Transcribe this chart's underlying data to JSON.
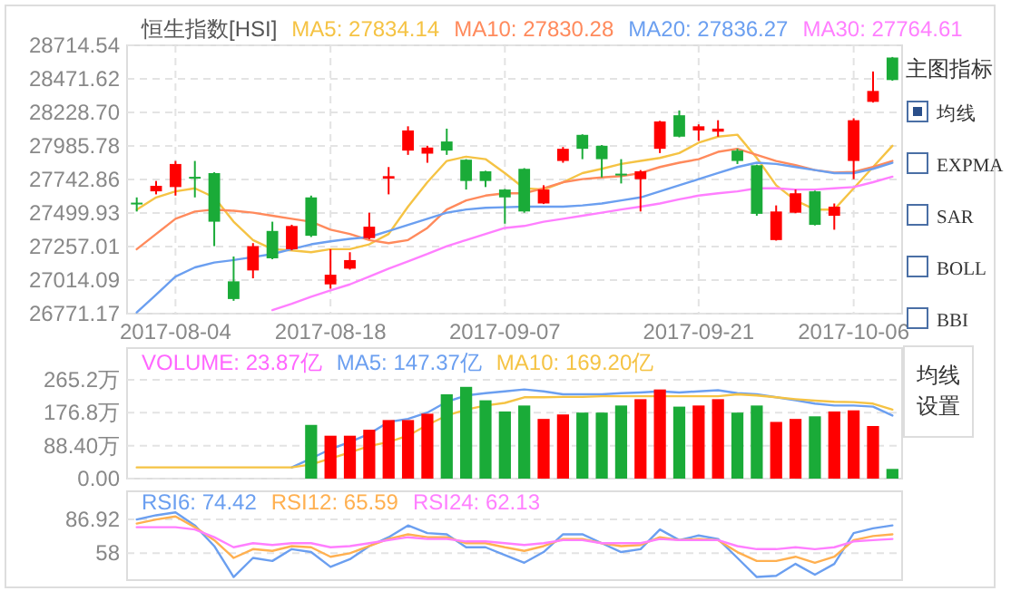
{
  "chart_data": [
    {
      "type": "candlestick",
      "title": "恒生指数[HSI]",
      "categories": [
        null,
        null,
        "2017-08-04",
        null,
        null,
        null,
        null,
        null,
        null,
        null,
        "2017-08-18",
        null,
        null,
        null,
        null,
        null,
        null,
        null,
        null,
        "2017-09-07",
        null,
        null,
        null,
        null,
        null,
        null,
        null,
        null,
        null,
        "2017-09-21",
        null,
        null,
        null,
        null,
        null,
        null,
        null,
        "2017-10-06",
        null,
        null
      ],
      "ohlc": [
        [
          27575,
          27613,
          27511,
          27565
        ],
        [
          27657,
          27732,
          27635,
          27697
        ],
        [
          27688,
          27877,
          27626,
          27855
        ],
        [
          27762,
          27877,
          27613,
          27754
        ],
        [
          27789,
          27795,
          27260,
          27437
        ],
        [
          27005,
          27185,
          26864,
          26877
        ],
        [
          27084,
          27282,
          27027,
          27260
        ],
        [
          27370,
          27437,
          27165,
          27172
        ],
        [
          27238,
          27415,
          27230,
          27406
        ],
        [
          27613,
          27626,
          27326,
          27335
        ],
        [
          26983,
          27238,
          26952,
          27053
        ],
        [
          27097,
          27216,
          27090,
          27159
        ],
        [
          27318,
          27502,
          27310,
          27401
        ],
        [
          27749,
          27833,
          27635,
          27767
        ],
        [
          27952,
          28128,
          27921,
          28098
        ],
        [
          27930,
          27987,
          27864,
          27974
        ],
        [
          28018,
          28111,
          27921,
          27952
        ],
        [
          27886,
          27890,
          27670,
          27732
        ],
        [
          27802,
          27806,
          27688,
          27732
        ],
        [
          27670,
          27674,
          27423,
          27613
        ],
        [
          27820,
          27825,
          27502,
          27511
        ],
        [
          27569,
          27701,
          27565,
          27670
        ],
        [
          27877,
          27978,
          27864,
          27965
        ],
        [
          28066,
          28070,
          27890,
          27965
        ],
        [
          27987,
          27992,
          27758,
          27890
        ],
        [
          27785,
          27890,
          27714,
          27775
        ],
        [
          27745,
          27811,
          27511,
          27802
        ],
        [
          27965,
          28168,
          27934,
          28163
        ],
        [
          28208,
          28243,
          28048,
          28053
        ],
        [
          28098,
          28142,
          28023,
          28128
        ],
        [
          28089,
          28172,
          28053,
          28111
        ],
        [
          27952,
          27965,
          27855,
          27877
        ],
        [
          27846,
          27850,
          27480,
          27494
        ],
        [
          27304,
          27555,
          27300,
          27511
        ],
        [
          27502,
          27670,
          27498,
          27643
        ],
        [
          27657,
          27662,
          27410,
          27414
        ],
        [
          27480,
          27569,
          27379,
          27546
        ],
        [
          27877,
          28186,
          27745,
          28172
        ],
        [
          28305,
          28525,
          28300,
          28384
        ],
        [
          28626,
          28630,
          28458,
          28463
        ]
      ],
      "series": [
        {
          "name": "MA5: 27834.14",
          "type": "line",
          "color": "#f5c344",
          "values": [
            27525,
            27613,
            27657,
            27679,
            27613,
            27437,
            27304,
            27238,
            27229,
            27216,
            27238,
            27238,
            27273,
            27348,
            27546,
            27723,
            27877,
            27908,
            27890,
            27789,
            27679,
            27670,
            27723,
            27789,
            27820,
            27855,
            27877,
            27899,
            27934,
            28009,
            28053,
            28067,
            27899,
            27701,
            27591,
            27525,
            27525,
            27679,
            27833,
            27987
          ]
        },
        {
          "name": "MA10: 27830.28",
          "type": "line",
          "color": "#ff8a5c",
          "values": [
            27238,
            27348,
            27458,
            27511,
            27525,
            27516,
            27502,
            27480,
            27458,
            27437,
            27379,
            27348,
            27304,
            27282,
            27304,
            27392,
            27525,
            27591,
            27626,
            27643,
            27643,
            27679,
            27723,
            27745,
            27758,
            27767,
            27789,
            27833,
            27864,
            27890,
            27943,
            27965,
            27921,
            27877,
            27846,
            27811,
            27793,
            27797,
            27833,
            27877
          ]
        },
        {
          "name": "MA20: 27836.27",
          "type": "line",
          "color": "#6b9ff0",
          "values": [
            26780,
            26908,
            27040,
            27106,
            27141,
            27159,
            27181,
            27203,
            27238,
            27273,
            27295,
            27313,
            27326,
            27370,
            27414,
            27458,
            27502,
            27525,
            27538,
            27542,
            27546,
            27546,
            27546,
            27555,
            27569,
            27591,
            27613,
            27657,
            27701,
            27745,
            27789,
            27833,
            27864,
            27855,
            27833,
            27811,
            27789,
            27789,
            27820,
            27864
          ]
        },
        {
          "name": "MA30: 27764.61",
          "type": "line",
          "color": "#ff7fff",
          "values": [
            null,
            null,
            null,
            null,
            null,
            null,
            null,
            26797,
            26842,
            26894,
            26939,
            26983,
            27040,
            27097,
            27150,
            27203,
            27260,
            27304,
            27348,
            27392,
            27406,
            27437,
            27458,
            27480,
            27502,
            27525,
            27546,
            27569,
            27599,
            27626,
            27643,
            27657,
            27679,
            27679,
            27670,
            27670,
            27679,
            27688,
            27723,
            27763
          ]
        }
      ],
      "ylim": [
        26771.17,
        28714.54
      ],
      "yticks": [
        28714.54,
        28471.62,
        {
          "value": 28228.7,
          "label": "28228.70"
        },
        27985.78,
        27742.86,
        27499.93,
        27257.01,
        27014.09,
        26771.17
      ],
      "grid": true
    },
    {
      "type": "bar",
      "categories": [
        null,
        null,
        null,
        null,
        null,
        null,
        null,
        null,
        null,
        null,
        null,
        null,
        null,
        null,
        null,
        null,
        null,
        null,
        null,
        null,
        null,
        null,
        null,
        null,
        null,
        null,
        null,
        null,
        null,
        null,
        null,
        null,
        null,
        null,
        null,
        null,
        null,
        null,
        null,
        null
      ],
      "series": [
        {
          "name": "VOLUME: 23.87亿",
          "color": "#ff66ff",
          "colors": [
            "#1aab38",
            "#ff0000",
            "#ff0000",
            "#1aab38",
            "#1aab38",
            "#1aab38",
            "#ff0000",
            "#1aab38",
            "#ff0000",
            "#1aab38",
            "#ff0000",
            "#ff0000",
            "#ff0000",
            "#ff0000",
            "#ff0000",
            "#ff0000",
            "#1aab38",
            "#1aab38",
            "#1aab38",
            "#1aab38",
            "#1aab38",
            "#ff0000",
            "#ff0000",
            "#1aab38",
            "#1aab38",
            "#1aab38",
            "#ff0000",
            "#ff0000",
            "#1aab38",
            "#ff0000",
            "#ff0000",
            "#1aab38",
            "#1aab38",
            "#ff0000",
            "#ff0000",
            "#1aab38",
            "#ff0000",
            "#ff0000",
            "#ff0000",
            "#1aab38"
          ],
          "values": [
            0,
            0,
            0,
            0,
            0,
            0,
            0,
            0,
            0,
            144,
            115,
            115,
            131,
            157,
            157,
            174,
            226,
            246,
            210,
            180,
            196,
            160,
            172,
            177,
            177,
            196,
            213,
            239,
            193,
            196,
            213,
            177,
            196,
            152,
            160,
            167,
            180,
            183,
            141,
            26
          ]
        },
        {
          "name": "MA5: 147.37亿",
          "type": "line",
          "color": "#6b9ff0",
          "values": [
            null,
            null,
            null,
            null,
            null,
            null,
            null,
            null,
            30,
            54,
            79,
            98,
            120,
            152,
            160,
            177,
            206,
            223,
            229,
            234,
            239,
            234,
            226,
            226,
            226,
            229,
            231,
            234,
            231,
            234,
            237,
            229,
            226,
            218,
            210,
            201,
            196,
            196,
            193,
            169
          ]
        },
        {
          "name": "MA10: 169.20亿",
          "type": "line",
          "color": "#f5c344",
          "values": [
            30,
            30,
            30,
            30,
            30,
            30,
            30,
            30,
            30,
            38,
            54,
            70,
            87,
            98,
            115,
            144,
            169,
            185,
            196,
            203,
            218,
            218,
            219,
            219,
            221,
            221,
            221,
            221,
            221,
            221,
            221,
            226,
            223,
            218,
            213,
            209,
            206,
            205,
            201,
            185
          ]
        }
      ],
      "ylim": [
        0,
        350
      ],
      "yticks": [
        {
          "value": 265.2,
          "label": "265.2万"
        },
        {
          "value": 176.8,
          "label": "176.8万"
        },
        {
          "value": 88.4,
          "label": "88.40万"
        },
        {
          "value": 0,
          "label": "0.00"
        }
      ],
      "grid": true
    },
    {
      "type": "line",
      "categories": [
        null,
        null,
        null,
        null,
        null,
        null,
        null,
        null,
        null,
        null,
        null,
        null,
        null,
        null,
        null,
        null,
        null,
        null,
        null,
        null,
        null,
        null,
        null,
        null,
        null,
        null,
        null,
        null,
        null,
        null,
        null,
        null,
        null,
        null,
        null,
        null,
        null,
        null,
        null,
        null
      ],
      "series": [
        {
          "name": "RSI6: 74.42",
          "color": "#6b9ff0",
          "values": [
            86.9,
            90.5,
            93.0,
            81.8,
            64.1,
            37.7,
            54.0,
            51.4,
            61.5,
            59.0,
            46.3,
            52.9,
            64.1,
            71.7,
            81.8,
            75.2,
            74.2,
            63.1,
            63.1,
            56.5,
            49.9,
            59.0,
            74.2,
            74.2,
            66.6,
            59.0,
            61.5,
            78.3,
            69.2,
            73.2,
            70.2,
            54.0,
            37.7,
            38.7,
            48.9,
            39.7,
            48.9,
            75.2,
            79.3,
            81.8
          ]
        },
        {
          "name": "RSI12: 65.59",
          "color": "#ffb050",
          "values": [
            83.4,
            86.9,
            89.5,
            80.3,
            69.2,
            54.0,
            61.5,
            60.0,
            64.1,
            63.1,
            55.0,
            58.0,
            64.1,
            70.2,
            74.2,
            71.7,
            71.7,
            66.6,
            66.6,
            63.1,
            60.0,
            64.1,
            70.2,
            70.2,
            66.6,
            64.1,
            65.1,
            71.7,
            69.2,
            70.2,
            69.2,
            59.0,
            51.4,
            51.4,
            55.0,
            49.9,
            55.0,
            69.2,
            72.7,
            74.2
          ]
        },
        {
          "name": "RSI24: 62.13",
          "color": "#ff7fff",
          "values": [
            80.3,
            80.3,
            80.3,
            78.3,
            71.7,
            63.1,
            66.6,
            65.1,
            66.6,
            66.6,
            63.1,
            64.1,
            66.6,
            69.2,
            71.7,
            70.2,
            70.2,
            68.1,
            68.1,
            66.6,
            65.1,
            66.6,
            69.2,
            69.2,
            66.6,
            66.6,
            66.6,
            70.2,
            69.2,
            69.2,
            69.2,
            64.1,
            61.5,
            61.5,
            63.1,
            61.5,
            63.1,
            68.1,
            69.2,
            70.2
          ]
        }
      ],
      "ylim": [
        35,
        111
      ],
      "yticks": [
        86.92,
        58
      ],
      "grid": true
    },
    {
      "type": "other",
      "title": "主图指标",
      "annotations": [
        "均线",
        "EXPMA",
        "SAR",
        "BOLL",
        "BBI",
        "均线设置"
      ]
    }
  ]
}
